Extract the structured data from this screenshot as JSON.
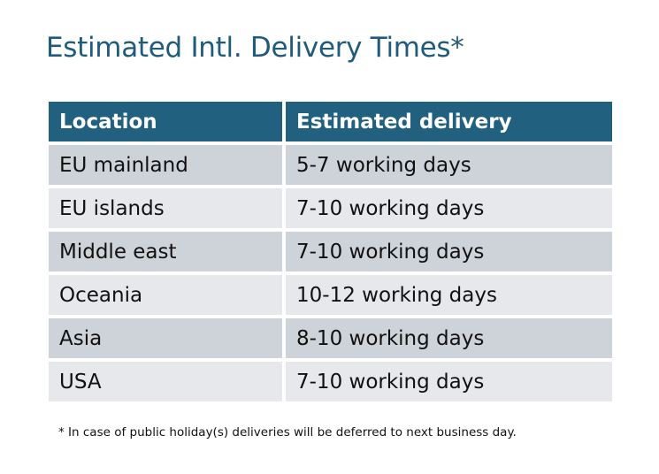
{
  "title": "Estimated Intl. Delivery Times*",
  "table": {
    "headers": [
      "Location",
      "Estimated delivery"
    ],
    "rows": [
      [
        "EU mainland",
        "5-7 working days"
      ],
      [
        "EU islands",
        "7-10 working days"
      ],
      [
        "Middle east",
        "7-10 working days"
      ],
      [
        "Oceania",
        "10-12 working days"
      ],
      [
        "Asia",
        "8-10 working days"
      ],
      [
        "USA",
        "7-10 working days"
      ]
    ]
  },
  "footnote": "* In case of public holiday(s) deliveries will be deferred to next business day.",
  "colors": {
    "header": "#21607f",
    "title": "#1f5b7b",
    "row_odd": "#ced2d9",
    "row_even": "#e6e8eb"
  }
}
